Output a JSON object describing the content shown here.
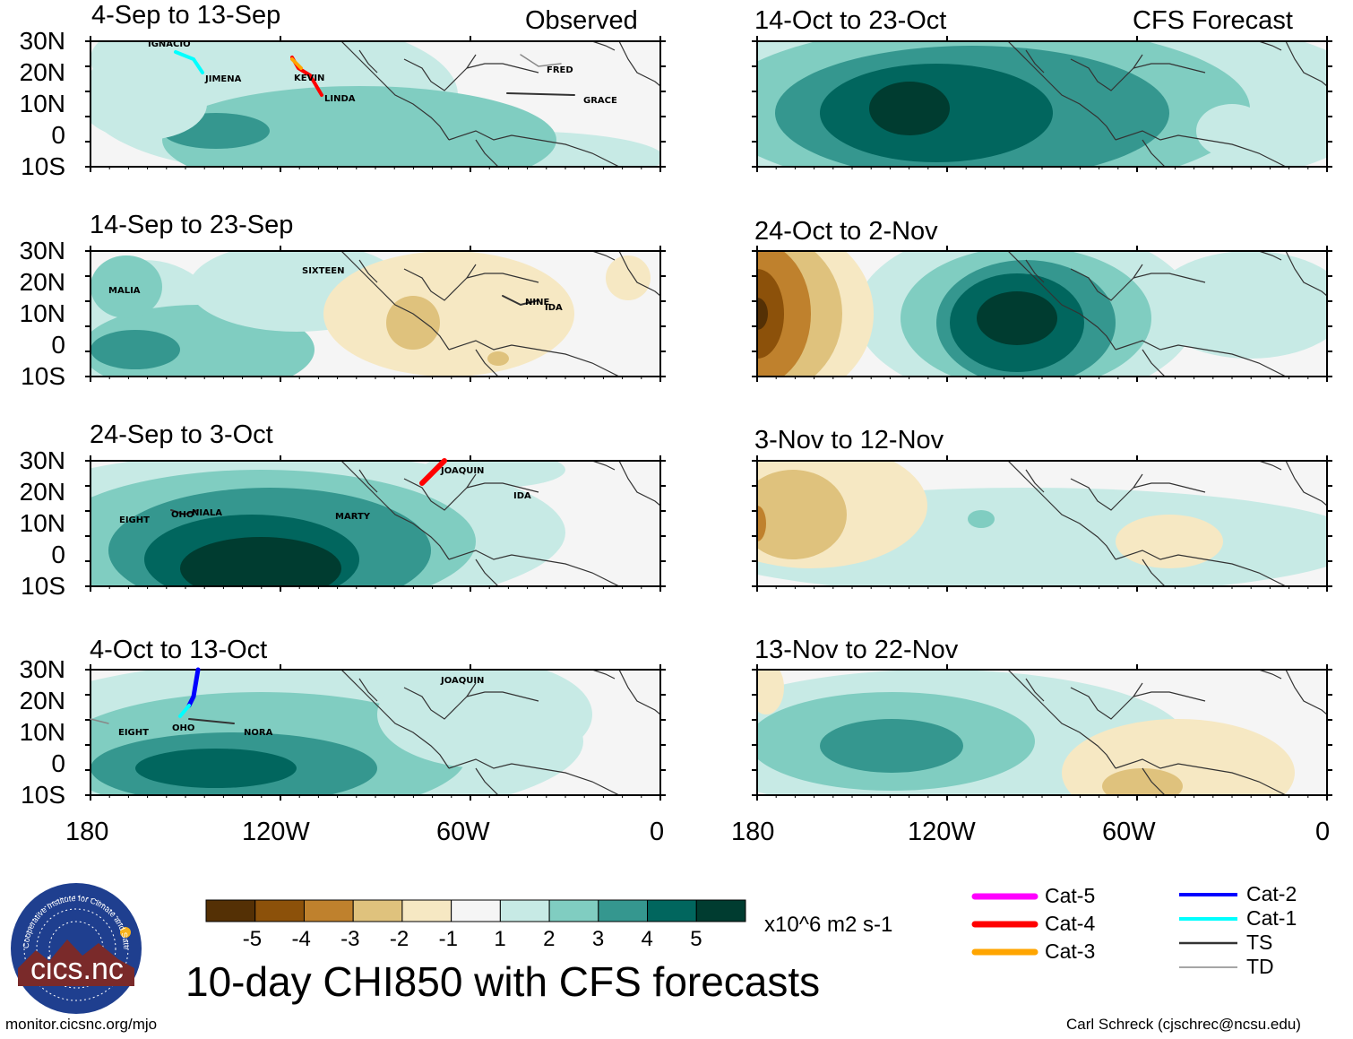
{
  "panels": {
    "observed": [
      {
        "title": "4-Sep to 13-Sep",
        "tag": "Observed",
        "storms": [
          "IGNACIO",
          "JIMENA",
          "KEVIN",
          "LINDA",
          "FRED",
          "GRACE"
        ]
      },
      {
        "title": "14-Sep to 23-Sep",
        "storms": [
          "MALIA",
          "SIXTEEN",
          "NINE",
          "IDA"
        ]
      },
      {
        "title": "24-Sep to 3-Oct",
        "storms": [
          "EIGHT",
          "OHO",
          "NIALA",
          "MARTY",
          "JOAQUIN",
          "IDA"
        ]
      },
      {
        "title": "4-Oct to 13-Oct",
        "storms": [
          "EIGHT",
          "OHO",
          "NORA",
          "JOAQUIN"
        ]
      }
    ],
    "forecast": [
      {
        "title": "14-Oct to 23-Oct",
        "tag": "CFS Forecast"
      },
      {
        "title": "24-Oct to 2-Nov"
      },
      {
        "title": "3-Nov to 12-Nov"
      },
      {
        "title": "13-Nov to 22-Nov"
      }
    ]
  },
  "lat_labels": [
    "30N",
    "20N",
    "10N",
    "0",
    "10S"
  ],
  "lon_labels": [
    "180",
    "120W",
    "60W",
    "0"
  ],
  "colorbar": {
    "colors": [
      "#543005",
      "#8c510a",
      "#bf812d",
      "#dfc27d",
      "#f6e8c3",
      "#f5f5f5",
      "#c7eae5",
      "#80cdc1",
      "#35978f",
      "#01665e",
      "#003c30"
    ],
    "ticks": [
      "-5",
      "-4",
      "-3",
      "-2",
      "-1",
      "1",
      "2",
      "3",
      "4",
      "5"
    ],
    "units": "x10^6 m2 s-1"
  },
  "legend": {
    "left": [
      {
        "label": "Cat-5",
        "color": "#ff00ff"
      },
      {
        "label": "Cat-4",
        "color": "#ff0000"
      },
      {
        "label": "Cat-3",
        "color": "#ffa500"
      }
    ],
    "right": [
      {
        "label": "Cat-2",
        "color": "#0000ff"
      },
      {
        "label": "Cat-1",
        "color": "#00ffff"
      },
      {
        "label": "TS",
        "color": "#333333"
      },
      {
        "label": "TD",
        "color": "#888888"
      }
    ]
  },
  "main_title": "10-day CHI850 with CFS forecasts",
  "logo": {
    "text": "cics.nc",
    "ring": "Cooperative Institute for Climate and Satellites"
  },
  "footer": {
    "left": "monitor.cicsnc.org/mjo",
    "right": "Carl Schreck (cjschrec@ncsu.edu)"
  }
}
